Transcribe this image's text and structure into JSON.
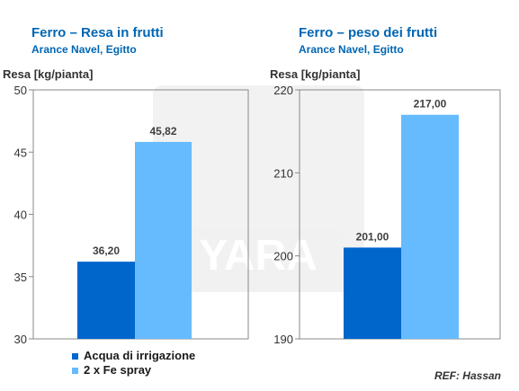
{
  "colors": {
    "title": "#0066b3",
    "series1": "#0066cc",
    "series2": "#66bbff",
    "plot_border": "#888888"
  },
  "legend": {
    "position": "bottom-left",
    "items": [
      {
        "label": "Acqua di irrigazione",
        "color": "#0066cc"
      },
      {
        "label": "2 x Fe spray",
        "color": "#66bbff"
      }
    ]
  },
  "ref": "REF: Hassan",
  "watermark": "YARA",
  "chart_data": [
    {
      "type": "bar",
      "title": "Ferro – Resa in frutti",
      "subtitle": "Arance Navel, Egitto",
      "ylabel": "Resa [kg/pianta]",
      "xlabel": "",
      "ylim": [
        30,
        50
      ],
      "yticks": [
        "30",
        "35",
        "40",
        "45",
        "50"
      ],
      "yticks_values": [
        30,
        35,
        40,
        45,
        50
      ],
      "grid": false,
      "series": [
        {
          "name": "Acqua di irrigazione",
          "value": 36.2,
          "label": "36,20"
        },
        {
          "name": "2 x Fe spray",
          "value": 45.82,
          "label": "45,82"
        }
      ]
    },
    {
      "type": "bar",
      "title": "Ferro – peso dei frutti",
      "subtitle": "Arance Navel, Egitto",
      "ylabel": "Resa [kg/pianta]",
      "xlabel": "",
      "ylim": [
        190,
        220
      ],
      "yticks": [
        "190",
        "200",
        "210",
        "220"
      ],
      "yticks_values": [
        190,
        200,
        210,
        220
      ],
      "grid": false,
      "series": [
        {
          "name": "Acqua di irrigazione",
          "value": 201.0,
          "label": "201,00"
        },
        {
          "name": "2 x Fe spray",
          "value": 217.0,
          "label": "217,00"
        }
      ]
    }
  ]
}
